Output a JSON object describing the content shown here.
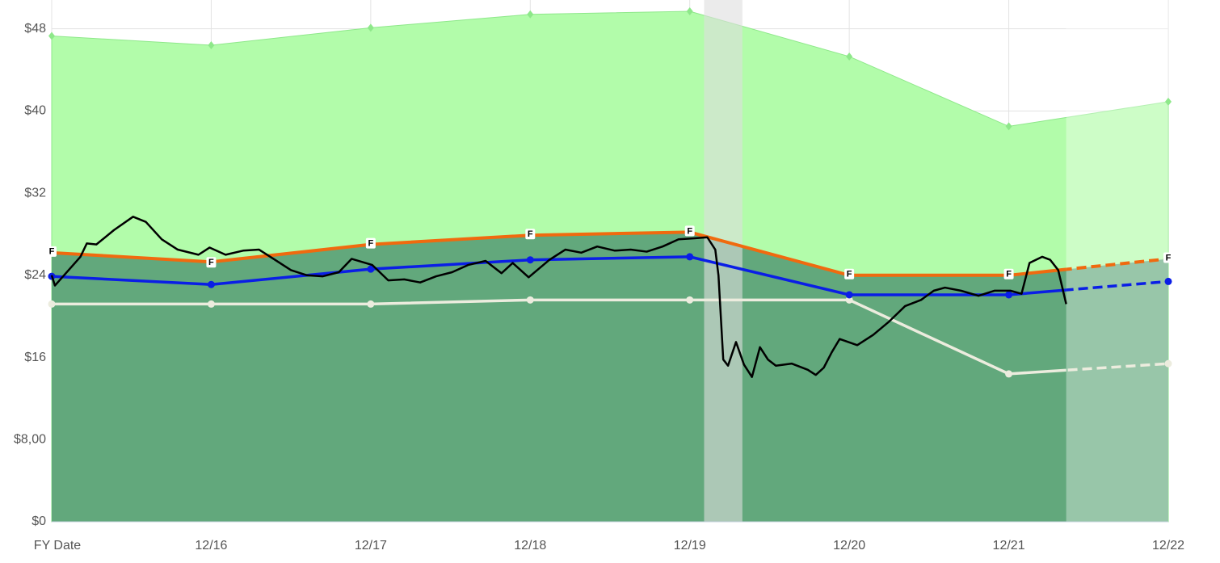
{
  "chart_data": {
    "type": "line",
    "x": [
      2015,
      2016,
      2017,
      2018,
      2019,
      2020,
      2021,
      2022
    ],
    "xlim": [
      2015,
      2022
    ],
    "xticks": [
      {
        "value": 2015,
        "label": "FY Date"
      },
      {
        "value": 2016,
        "label": "12/16"
      },
      {
        "value": 2017,
        "label": "12/17"
      },
      {
        "value": 2018,
        "label": "12/18"
      },
      {
        "value": 2019,
        "label": "12/19"
      },
      {
        "value": 2020,
        "label": "12/20"
      },
      {
        "value": 2021,
        "label": "12/21"
      },
      {
        "value": 2022,
        "label": "12/22"
      }
    ],
    "ylim": [
      0,
      50.8
    ],
    "yticks": [
      {
        "value": 0,
        "label": "$0"
      },
      {
        "value": 8,
        "label": "$8,00"
      },
      {
        "value": 16,
        "label": "$16"
      },
      {
        "value": 24,
        "label": "$24"
      },
      {
        "value": 32,
        "label": "$32"
      },
      {
        "value": 40,
        "label": "$40"
      },
      {
        "value": 48,
        "label": "$48"
      }
    ],
    "grid": true,
    "forecast_from": 2021.36,
    "shaded_band": [
      2019.09,
      2019.33
    ],
    "shaded_band_color": "#dedede",
    "upper_area": {
      "color": "#b2fcaa",
      "marker_color": "#8ee88a",
      "values": [
        47.3,
        46.4,
        48.1,
        49.4,
        49.7,
        45.3,
        38.5,
        40.9
      ]
    },
    "series": [
      {
        "color": "#f06a0f",
        "area_color": "#62a87c",
        "point_label": "F",
        "values": [
          26.2,
          25.3,
          27.0,
          27.9,
          28.2,
          24.0,
          24.0,
          25.6
        ]
      },
      {
        "color": "#0a1ee6",
        "values": [
          23.9,
          23.1,
          24.6,
          25.5,
          25.8,
          22.1,
          22.1,
          23.4
        ]
      },
      {
        "color": "#ececde",
        "values": [
          21.2,
          21.2,
          21.2,
          21.6,
          21.6,
          21.6,
          14.4,
          15.4
        ]
      }
    ],
    "price": {
      "color": "#000000",
      "x": [
        2015.0,
        2015.02,
        2015.18,
        2015.22,
        2015.28,
        2015.39,
        2015.51,
        2015.59,
        2015.69,
        2015.79,
        2015.92,
        2015.99,
        2016.09,
        2016.2,
        2016.3,
        2016.4,
        2016.5,
        2016.6,
        2016.7,
        2016.8,
        2016.88,
        2017.01,
        2017.11,
        2017.21,
        2017.31,
        2017.41,
        2017.51,
        2017.61,
        2017.72,
        2017.82,
        2017.89,
        2017.99,
        2018.12,
        2018.22,
        2018.32,
        2018.42,
        2018.53,
        2018.63,
        2018.73,
        2018.83,
        2018.93,
        2019.03,
        2019.11,
        2019.16,
        2019.18,
        2019.21,
        2019.24,
        2019.29,
        2019.34,
        2019.39,
        2019.44,
        2019.49,
        2019.54,
        2019.64,
        2019.74,
        2019.79,
        2019.84,
        2019.89,
        2019.94,
        2020.05,
        2020.15,
        2020.25,
        2020.35,
        2020.45,
        2020.53,
        2020.6,
        2020.7,
        2020.81,
        2020.91,
        2021.01,
        2021.08,
        2021.13,
        2021.21,
        2021.26,
        2021.31,
        2021.36
      ],
      "values": [
        24.0,
        23.0,
        25.8,
        27.1,
        27.0,
        28.4,
        29.7,
        29.2,
        27.5,
        26.5,
        26.0,
        26.7,
        26.0,
        26.4,
        26.5,
        25.5,
        24.5,
        24.0,
        23.9,
        24.3,
        25.6,
        25.0,
        23.5,
        23.6,
        23.3,
        23.9,
        24.3,
        25.0,
        25.4,
        24.2,
        25.2,
        23.8,
        25.5,
        26.5,
        26.2,
        26.8,
        26.4,
        26.5,
        26.3,
        26.8,
        27.5,
        27.6,
        27.7,
        26.5,
        24.0,
        15.8,
        15.2,
        17.5,
        15.3,
        14.1,
        17.0,
        15.8,
        15.2,
        15.4,
        14.8,
        14.3,
        15.0,
        16.5,
        17.8,
        17.2,
        18.2,
        19.5,
        21.0,
        21.6,
        22.5,
        22.8,
        22.5,
        22.0,
        22.5,
        22.5,
        22.2,
        25.2,
        25.8,
        25.5,
        24.5,
        21.2
      ]
    }
  }
}
